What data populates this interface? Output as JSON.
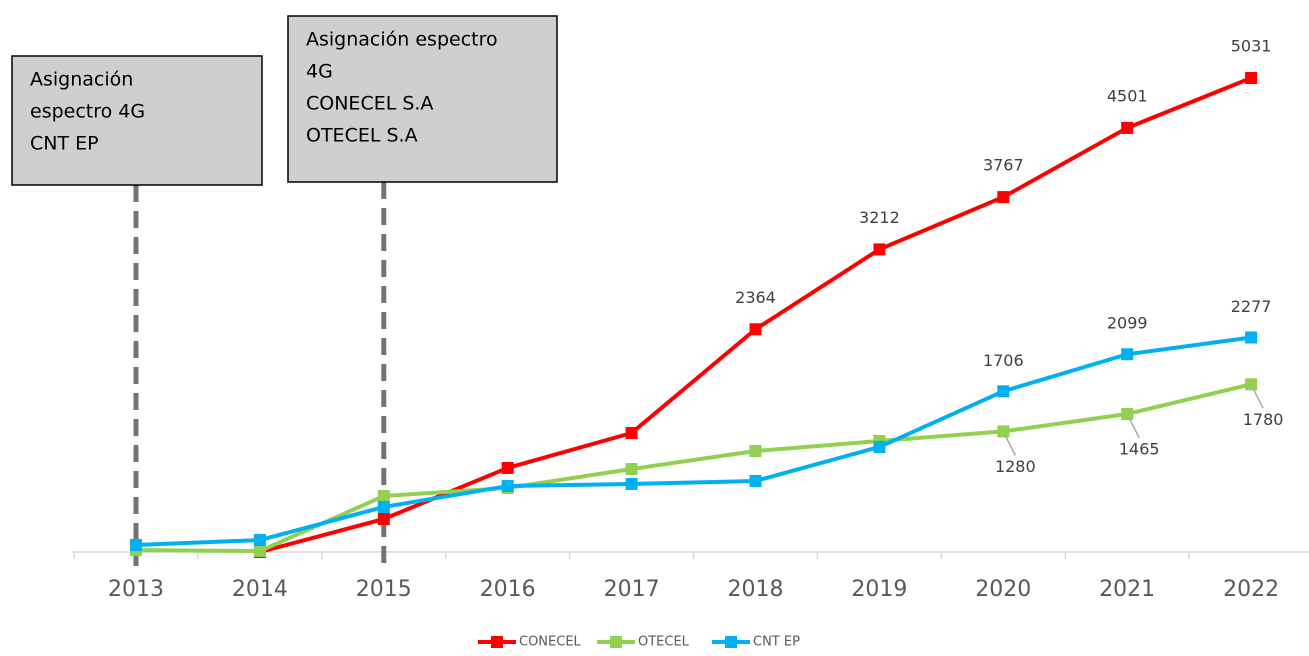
{
  "chart_data": {
    "type": "line",
    "categories": [
      "2013",
      "2014",
      "2015",
      "2016",
      "2017",
      "2018",
      "2019",
      "2020",
      "2021",
      "2022"
    ],
    "series": [
      {
        "name": "CONECEL",
        "color": "#ff0000",
        "values": [
          null,
          0,
          350,
          892,
          1263,
          2364,
          3212,
          3767,
          4501,
          5031
        ],
        "value_labels": [
          null,
          null,
          null,
          null,
          null,
          "2364",
          "3212",
          "3767",
          "4501",
          "5031"
        ]
      },
      {
        "name": "OTECEL",
        "color": "#92d050",
        "values": [
          20,
          10,
          594,
          680,
          881,
          1072,
          1178,
          1280,
          1465,
          1780
        ],
        "value_labels": [
          null,
          null,
          null,
          null,
          null,
          null,
          null,
          "1280",
          "1465",
          "1780"
        ]
      },
      {
        "name": "CNT EP",
        "color": "#00b0f0",
        "values": [
          74,
          127,
          478,
          700,
          722,
          754,
          1115,
          1706,
          2099,
          2277
        ],
        "value_labels": [
          null,
          null,
          null,
          null,
          null,
          null,
          null,
          "1706",
          "2099",
          "2277"
        ]
      }
    ],
    "annotations": [
      {
        "x": "2013",
        "lines": [
          "Asignación",
          "espectro 4G",
          "CNT EP"
        ]
      },
      {
        "x": "2015",
        "lines": [
          "Asignación espectro",
          "4G",
          "CONECEL S.A",
          "OTECEL S.A"
        ]
      }
    ],
    "legend": "bottom"
  }
}
